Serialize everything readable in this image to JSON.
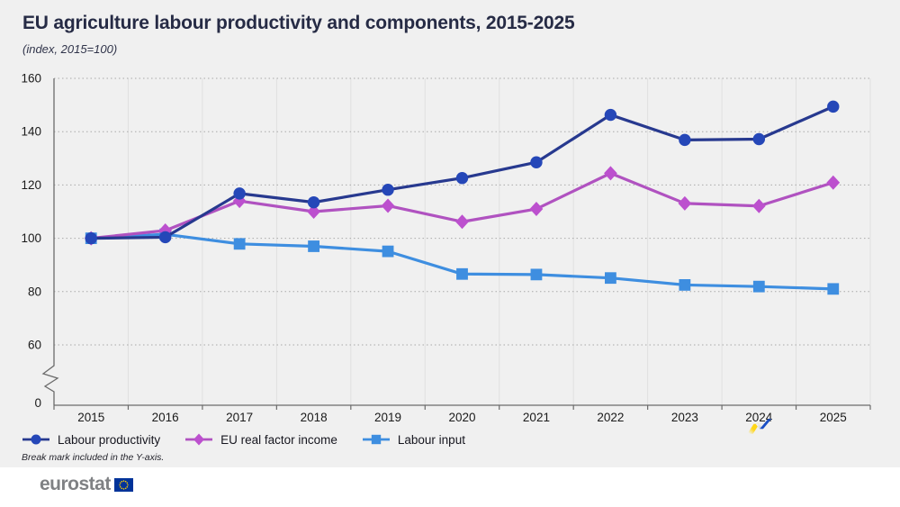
{
  "header": {
    "title": "EU agriculture labour productivity and components, 2015-2025",
    "subtitle": "(index, 2015=100)"
  },
  "chart_data": {
    "type": "line",
    "x": [
      2015,
      2016,
      2017,
      2018,
      2019,
      2020,
      2021,
      2022,
      2023,
      2024,
      2025
    ],
    "series": [
      {
        "name": "Labour input",
        "marker": "square",
        "color": "#3E8EE0",
        "marker_color": "#3E8EE0",
        "values": [
          100,
          101.5,
          97.9,
          97,
          95.1,
          86.6,
          86.4,
          85.1,
          82.5,
          81.9,
          81
        ]
      },
      {
        "name": "EU real factor income",
        "marker": "diamond",
        "color": "#B052C0",
        "marker_color": "#BC50CE",
        "values": [
          100,
          102.9,
          114,
          110,
          112.2,
          106.2,
          111,
          124.4,
          113.1,
          112.1,
          120.9
        ]
      },
      {
        "name": "Labour productivity",
        "marker": "circle",
        "color": "#27398F",
        "marker_color": "#2547B8",
        "values": [
          100,
          100.4,
          116.8,
          113.5,
          118.2,
          122.6,
          128.5,
          146.3,
          136.9,
          137.2,
          149.4
        ]
      }
    ],
    "legend_order": [
      2,
      1,
      0
    ],
    "ylim": [
      0,
      160
    ],
    "yticks": [
      160,
      140,
      120,
      100,
      80,
      60,
      0
    ],
    "y_break": true,
    "grid": {
      "horizontal": "dotted",
      "vertical": "solid"
    },
    "legend_position": "bottom-left",
    "colors": {
      "axis": "#6B6B6B",
      "h_grid": "#A9A9A9",
      "v_grid": "#E0E0E0",
      "tick_text": "#1A1A1A"
    }
  },
  "footnote": "Break mark included in the Y-axis.",
  "footer": {
    "logo_text": "eurostat",
    "flag_blue": "#003399",
    "flag_star_yellow": "#FFCC00",
    "motif_yellow": "#FFD617",
    "motif_blue": "#1B4FC5"
  }
}
